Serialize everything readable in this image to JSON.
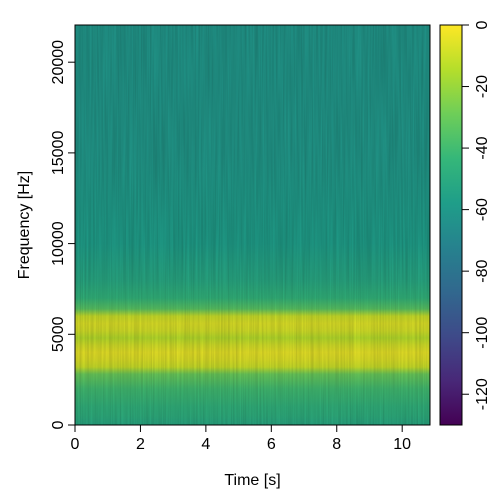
{
  "chart_data": {
    "type": "heatmap",
    "title": "",
    "xlabel": "Time [s]",
    "ylabel": "Frequency [Hz]",
    "xlim": [
      0,
      10.85
    ],
    "ylim": [
      0,
      22050
    ],
    "x_ticks": [
      0,
      2,
      4,
      6,
      8,
      10
    ],
    "x_tick_labels": [
      "0",
      "2",
      "4",
      "6",
      "8",
      "10"
    ],
    "y_ticks": [
      0,
      5000,
      10000,
      15000,
      20000
    ],
    "y_tick_labels": [
      "0",
      "5000",
      "10000",
      "15000",
      "20000"
    ],
    "colorbar": {
      "colormap": "viridis",
      "range": [
        -130,
        0
      ],
      "ticks": [
        0,
        -20,
        -40,
        -60,
        -80,
        -100,
        -120
      ],
      "tick_labels": [
        "0",
        "-20",
        "-40",
        "-60",
        "-80",
        "-100",
        "-120"
      ],
      "colors": [
        "#440154",
        "#482878",
        "#3e4a89",
        "#31688e",
        "#26828e",
        "#1f9e89",
        "#35b779",
        "#6ece58",
        "#b5de2b",
        "#fde725"
      ]
    },
    "intensity_profile": {
      "frequency_hz": [
        0,
        500,
        1000,
        2000,
        2800,
        3200,
        3600,
        4000,
        4400,
        4800,
        5200,
        5600,
        6000,
        6400,
        7000,
        8000,
        10000,
        15000,
        22050
      ],
      "level_db": [
        -52,
        -48,
        -46,
        -40,
        -30,
        -10,
        -6,
        -4,
        -8,
        -14,
        -8,
        -6,
        -10,
        -34,
        -45,
        -52,
        -58,
        -61,
        -62
      ]
    }
  }
}
